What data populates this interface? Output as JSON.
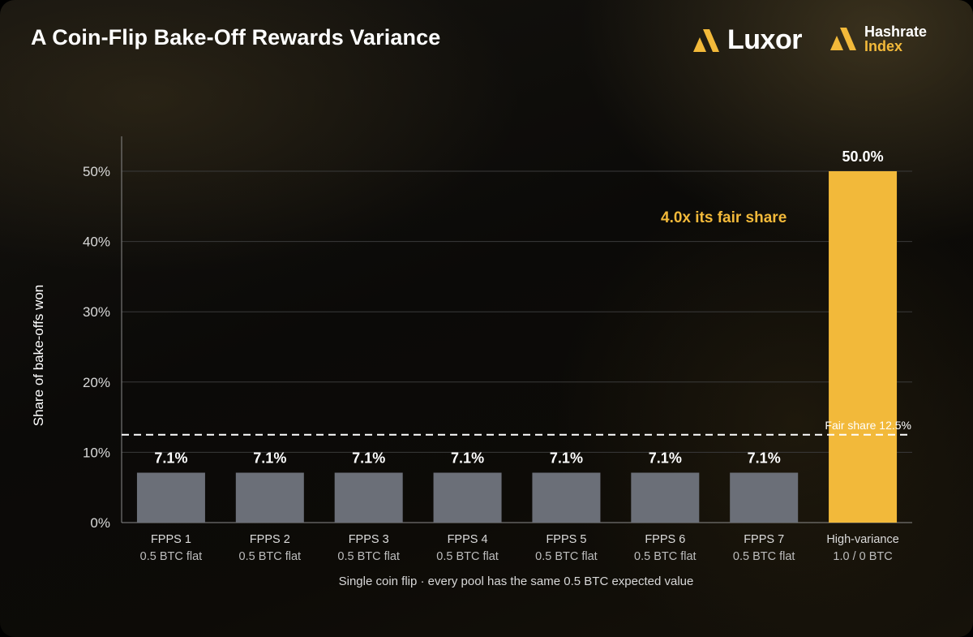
{
  "header": {
    "title": "A Coin-Flip Bake-Off Rewards Variance",
    "logo_luxor": "Luxor",
    "logo_hashrate_line1": "Hashrate",
    "logo_hashrate_line2": "Index"
  },
  "colors": {
    "brand_gold": "#f2b93a",
    "bar_gray": "#6b6f78",
    "gridline": "#3a3a3a",
    "fair_line": "#ffffff"
  },
  "chart_data": {
    "type": "bar",
    "title": "A Coin-Flip Bake-Off Rewards Variance",
    "subtitle": "Single coin flip · every pool has the same 0.5 BTC expected value",
    "ylabel": "Share of bake-offs won",
    "xlabel": "",
    "ylim": [
      0,
      50
    ],
    "yticks": [
      "0%",
      "10%",
      "20%",
      "30%",
      "40%",
      "50%"
    ],
    "grid": true,
    "categories": [
      {
        "name": "FPPS 1",
        "sub": "0.5 BTC flat"
      },
      {
        "name": "FPPS 2",
        "sub": "0.5 BTC flat"
      },
      {
        "name": "FPPS 3",
        "sub": "0.5 BTC flat"
      },
      {
        "name": "FPPS 4",
        "sub": "0.5 BTC flat"
      },
      {
        "name": "FPPS 5",
        "sub": "0.5 BTC flat"
      },
      {
        "name": "FPPS 6",
        "sub": "0.5 BTC flat"
      },
      {
        "name": "FPPS 7",
        "sub": "0.5 BTC flat"
      },
      {
        "name": "High-variance",
        "sub": "1.0 / 0 BTC"
      }
    ],
    "values": [
      7.1,
      7.1,
      7.1,
      7.1,
      7.1,
      7.1,
      7.1,
      50.0
    ],
    "value_labels": [
      "7.1%",
      "7.1%",
      "7.1%",
      "7.1%",
      "7.1%",
      "7.1%",
      "7.1%",
      "50.0%"
    ],
    "highlight_index": 7,
    "reference_line": {
      "value": 12.5,
      "label": "Fair share 12.5%",
      "style": "dashed"
    },
    "annotation": "4.0x its fair share"
  }
}
